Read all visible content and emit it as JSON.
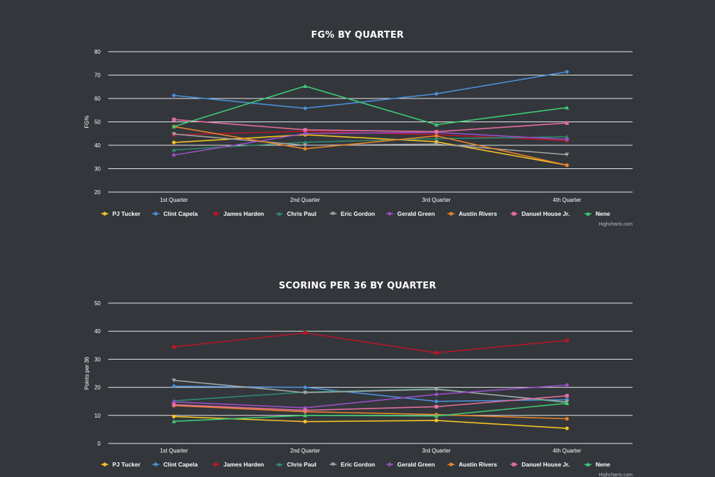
{
  "credits": "Highcharts.com",
  "chart_data": [
    {
      "type": "line",
      "title": "FG% BY QUARTER",
      "ylabel": "FG%",
      "xlabel": "",
      "ylim": [
        20,
        80
      ],
      "yticks": [
        20,
        30,
        40,
        50,
        60,
        70,
        80
      ],
      "grid": true,
      "legend_position": "bottom",
      "categories": [
        "1st Quarter",
        "2nd Quarter",
        "3rd Quarter",
        "4th Quarter"
      ],
      "series": [
        {
          "name": "PJ Tucker",
          "color": "#f7c325",
          "marker": "circle",
          "values": [
            41.2,
            44.5,
            41.5,
            31.5
          ]
        },
        {
          "name": "Clint Capela",
          "color": "#4a90d9",
          "marker": "diamond",
          "values": [
            61.3,
            55.8,
            62.0,
            71.4
          ]
        },
        {
          "name": "James Harden",
          "color": "#b5162a",
          "marker": "square",
          "values": [
            44.5,
            46.0,
            44.5,
            42.0
          ]
        },
        {
          "name": "Chris Paul",
          "color": "#2e8b6f",
          "marker": "triangle",
          "values": [
            38.0,
            41.3,
            42.8,
            43.6
          ]
        },
        {
          "name": "Eric Gordon",
          "color": "#a3a3a3",
          "marker": "triangle-down",
          "values": [
            44.8,
            40.0,
            40.5,
            36.0
          ]
        },
        {
          "name": "Gerald Green",
          "color": "#9b4fc9",
          "marker": "diamond",
          "values": [
            35.8,
            45.0,
            45.5,
            42.5
          ]
        },
        {
          "name": "Austin Rivers",
          "color": "#e8842a",
          "marker": "circle",
          "values": [
            48.0,
            38.5,
            44.0,
            31.5
          ]
        },
        {
          "name": "Danuel House Jr.",
          "color": "#e56ea0",
          "marker": "square",
          "values": [
            51.0,
            46.6,
            45.8,
            49.5
          ]
        },
        {
          "name": "Nene",
          "color": "#3ecc74",
          "marker": "triangle",
          "values": [
            48.0,
            65.3,
            48.8,
            56.1
          ]
        }
      ]
    },
    {
      "type": "line",
      "title": "SCORING PER 36 BY QUARTER",
      "ylabel": "Points per 36",
      "xlabel": "",
      "ylim": [
        0,
        50
      ],
      "yticks": [
        0,
        10,
        20,
        30,
        40,
        50
      ],
      "grid": true,
      "legend_position": "bottom",
      "categories": [
        "1st Quarter",
        "2nd Quarter",
        "3rd Quarter",
        "4th Quarter"
      ],
      "series": [
        {
          "name": "PJ Tucker",
          "color": "#f7c325",
          "marker": "circle",
          "values": [
            9.6,
            7.8,
            8.2,
            5.4
          ]
        },
        {
          "name": "Clint Capela",
          "color": "#4a90d9",
          "marker": "diamond",
          "values": [
            20.4,
            20.0,
            15.0,
            15.6
          ]
        },
        {
          "name": "James Harden",
          "color": "#b5162a",
          "marker": "square",
          "values": [
            34.4,
            39.4,
            32.3,
            36.7
          ]
        },
        {
          "name": "Chris Paul",
          "color": "#2e8b6f",
          "marker": "triangle",
          "values": [
            15.2,
            18.3,
            19.5,
            14.5
          ]
        },
        {
          "name": "Eric Gordon",
          "color": "#a3a3a3",
          "marker": "triangle-down",
          "values": [
            22.5,
            18.1,
            19.3,
            14.8
          ]
        },
        {
          "name": "Gerald Green",
          "color": "#9b4fc9",
          "marker": "diamond",
          "values": [
            14.8,
            12.7,
            17.5,
            20.8
          ]
        },
        {
          "name": "Austin Rivers",
          "color": "#e8842a",
          "marker": "circle",
          "values": [
            13.5,
            11.3,
            10.3,
            8.8
          ]
        },
        {
          "name": "Danuel House Jr.",
          "color": "#e56ea0",
          "marker": "square",
          "values": [
            13.8,
            11.8,
            13.1,
            17.0
          ]
        },
        {
          "name": "Nene",
          "color": "#3ecc74",
          "marker": "triangle",
          "values": [
            7.9,
            10.0,
            9.8,
            14.3
          ]
        }
      ]
    }
  ]
}
